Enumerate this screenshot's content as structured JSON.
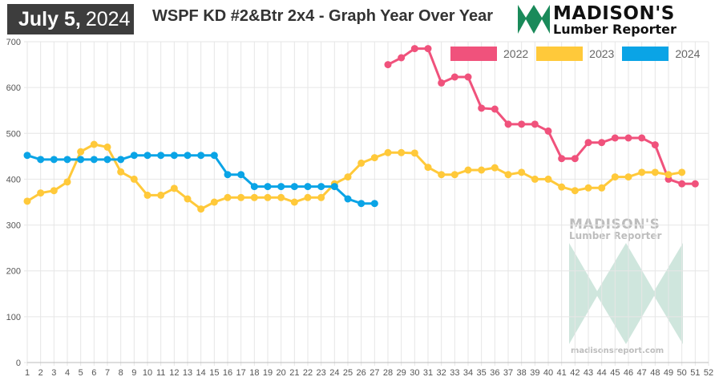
{
  "header": {
    "date_month_day": "July 5,",
    "date_year": "2024",
    "title": "WSPF KD #2&Btr 2x4 - Graph Year Over Year",
    "logo_line1": "MADISON'S",
    "logo_line2": "Lumber Reporter"
  },
  "watermark": {
    "line1": "MADISON'S",
    "line2": "Lumber Reporter",
    "url": "madisonsreport.com"
  },
  "colors": {
    "2022": "#f0527c",
    "2023": "#ffc93a",
    "2024": "#0aa4e6",
    "logo": "#1a8a5a",
    "watermark": "#cfe6dd"
  },
  "chart_data": {
    "type": "line",
    "x": [
      1,
      2,
      3,
      4,
      5,
      6,
      7,
      8,
      9,
      10,
      11,
      12,
      13,
      14,
      15,
      16,
      17,
      18,
      19,
      20,
      21,
      22,
      23,
      24,
      25,
      26,
      27,
      28,
      29,
      30,
      31,
      32,
      33,
      34,
      35,
      36,
      37,
      38,
      39,
      40,
      41,
      42,
      43,
      44,
      45,
      46,
      47,
      48,
      49,
      50,
      51,
      52
    ],
    "ylim": [
      0,
      700
    ],
    "yticks": [
      0,
      100,
      200,
      300,
      400,
      500,
      600,
      700
    ],
    "grid": true,
    "legend_position": "top-right",
    "series": [
      {
        "name": "2022",
        "points": [
          [
            28,
            650
          ],
          [
            29,
            665
          ],
          [
            30,
            685
          ],
          [
            31,
            685
          ],
          [
            32,
            610
          ],
          [
            33,
            623
          ],
          [
            34,
            623
          ],
          [
            35,
            555
          ],
          [
            36,
            553
          ],
          [
            37,
            520
          ],
          [
            38,
            520
          ],
          [
            39,
            520
          ],
          [
            40,
            505
          ],
          [
            41,
            445
          ],
          [
            42,
            445
          ],
          [
            43,
            480
          ],
          [
            44,
            480
          ],
          [
            45,
            490
          ],
          [
            46,
            490
          ],
          [
            47,
            490
          ],
          [
            48,
            475
          ],
          [
            49,
            400
          ],
          [
            50,
            390
          ],
          [
            51,
            390
          ]
        ]
      },
      {
        "name": "2023",
        "points": [
          [
            1,
            352
          ],
          [
            2,
            370
          ],
          [
            3,
            375
          ],
          [
            4,
            394
          ],
          [
            5,
            460
          ],
          [
            6,
            476
          ],
          [
            7,
            470
          ],
          [
            8,
            416
          ],
          [
            9,
            400
          ],
          [
            10,
            365
          ],
          [
            11,
            365
          ],
          [
            12,
            380
          ],
          [
            13,
            357
          ],
          [
            14,
            335
          ],
          [
            15,
            350
          ],
          [
            16,
            360
          ],
          [
            17,
            360
          ],
          [
            18,
            360
          ],
          [
            19,
            360
          ],
          [
            20,
            360
          ],
          [
            21,
            350
          ],
          [
            22,
            360
          ],
          [
            23,
            360
          ],
          [
            24,
            390
          ],
          [
            25,
            405
          ],
          [
            26,
            435
          ],
          [
            27,
            447
          ],
          [
            28,
            458
          ],
          [
            29,
            458
          ],
          [
            30,
            457
          ],
          [
            31,
            426
          ],
          [
            32,
            410
          ],
          [
            33,
            410
          ],
          [
            34,
            420
          ],
          [
            35,
            420
          ],
          [
            36,
            425
          ],
          [
            37,
            410
          ],
          [
            38,
            415
          ],
          [
            39,
            400
          ],
          [
            40,
            400
          ],
          [
            41,
            383
          ],
          [
            42,
            375
          ],
          [
            43,
            381
          ],
          [
            44,
            381
          ],
          [
            45,
            405
          ],
          [
            46,
            405
          ],
          [
            47,
            415
          ],
          [
            48,
            415
          ],
          [
            49,
            410
          ],
          [
            50,
            415
          ]
        ]
      },
      {
        "name": "2024",
        "points": [
          [
            1,
            452
          ],
          [
            2,
            443
          ],
          [
            3,
            443
          ],
          [
            4,
            443
          ],
          [
            5,
            443
          ],
          [
            6,
            443
          ],
          [
            7,
            443
          ],
          [
            8,
            443
          ],
          [
            9,
            452
          ],
          [
            10,
            452
          ],
          [
            11,
            452
          ],
          [
            12,
            452
          ],
          [
            13,
            452
          ],
          [
            14,
            452
          ],
          [
            15,
            452
          ],
          [
            16,
            410
          ],
          [
            17,
            410
          ],
          [
            18,
            384
          ],
          [
            19,
            384
          ],
          [
            20,
            384
          ],
          [
            21,
            384
          ],
          [
            22,
            384
          ],
          [
            23,
            384
          ],
          [
            24,
            384
          ],
          [
            25,
            357
          ],
          [
            26,
            347
          ],
          [
            27,
            347
          ]
        ]
      }
    ]
  }
}
